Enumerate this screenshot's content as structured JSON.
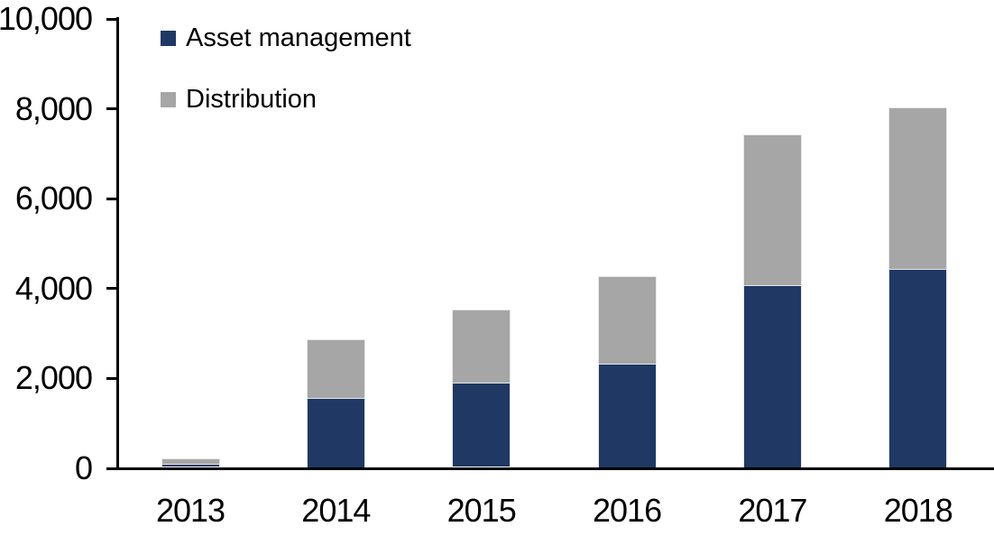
{
  "chart_data": {
    "type": "bar",
    "stacked": true,
    "title": "",
    "xlabel": "",
    "ylabel": "",
    "categories": [
      "2013",
      "2014",
      "2015",
      "2016",
      "2017",
      "2018"
    ],
    "series": [
      {
        "name": "Asset management",
        "color": "#1f3864",
        "values": [
          80,
          1530,
          1880,
          2300,
          4040,
          4410
        ]
      },
      {
        "name": "Distribution",
        "color": "#a6a6a6",
        "values": [
          105,
          1320,
          1620,
          1950,
          3350,
          3590
        ]
      }
    ],
    "totals": [
      185,
      2850,
      3500,
      4250,
      7390,
      8000
    ],
    "ylim": [
      0,
      10000
    ],
    "yticks": [
      0,
      2000,
      4000,
      6000,
      8000,
      10000
    ],
    "ytick_labels": [
      "0",
      "2,000",
      "4,000",
      "6,000",
      "8,000",
      "10,000"
    ],
    "grid": false,
    "legend_position": "top-left-inside",
    "axis_color": "#000000",
    "text_color": "#000000",
    "bar_outline_color": "#e7e7e7"
  }
}
